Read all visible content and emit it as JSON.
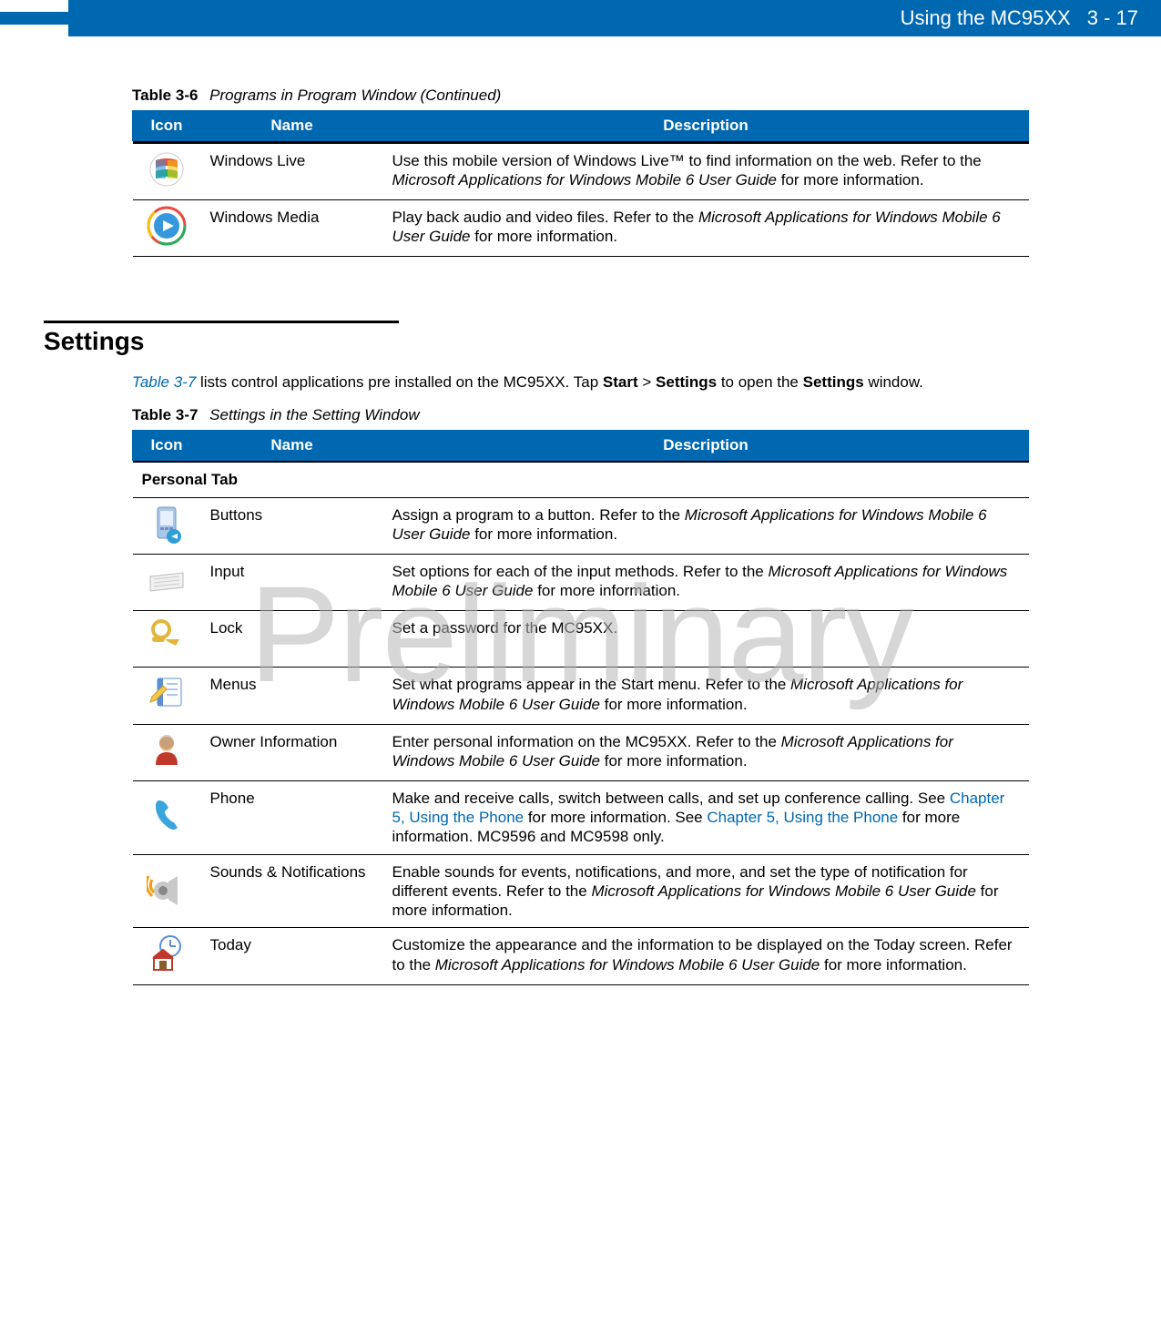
{
  "header": {
    "title": "Using the MC95XX",
    "pagenum": "3 - 17",
    "bar_color": "#0067b1",
    "text_color": "#ffffff"
  },
  "watermark": "Preliminary",
  "table36": {
    "number": "Table 3-6",
    "title": "Programs in Program Window (Continued)",
    "columns": [
      "Icon",
      "Name",
      "Description"
    ],
    "rows": [
      {
        "icon": "windows-live-icon",
        "name": "Windows Live",
        "desc_parts": [
          {
            "t": "Use this mobile version of Windows Live™ to find information on the web. Refer to the "
          },
          {
            "t": "Microsoft Applications for Windows Mobile 6 User Guide",
            "italic": true
          },
          {
            "t": " for more information."
          }
        ]
      },
      {
        "icon": "windows-media-icon",
        "name": "Windows Media",
        "desc_parts": [
          {
            "t": "Play back audio and video files. Refer to the "
          },
          {
            "t": "Microsoft Applications for Windows Mobile 6 User Guide",
            "italic": true
          },
          {
            "t": " for more information."
          }
        ]
      }
    ]
  },
  "settings_section": {
    "heading": "Settings",
    "intro_parts": [
      {
        "t": "Table 3-7",
        "link": true,
        "italic": true
      },
      {
        "t": " lists control applications pre installed on the MC95XX. Tap "
      },
      {
        "t": "Start",
        "bold": true
      },
      {
        "t": " > "
      },
      {
        "t": "Settings",
        "bold": true
      },
      {
        "t": " to open the "
      },
      {
        "t": "Settings",
        "bold": true
      },
      {
        "t": " window."
      }
    ]
  },
  "table37": {
    "number": "Table 3-7",
    "title": "Settings in the Setting Window",
    "columns": [
      "Icon",
      "Name",
      "Description"
    ],
    "section_label": "Personal Tab",
    "rows": [
      {
        "icon": "buttons-icon",
        "name": "Buttons",
        "desc_parts": [
          {
            "t": "Assign a program to a button. Refer to the "
          },
          {
            "t": "Microsoft Applications for Windows Mobile 6 User Guide",
            "italic": true
          },
          {
            "t": " for more information."
          }
        ]
      },
      {
        "icon": "input-icon",
        "name": "Input",
        "desc_parts": [
          {
            "t": "Set options for each of the input methods. Refer to the "
          },
          {
            "t": "Microsoft Applications for Windows Mobile 6 User Guide",
            "italic": true
          },
          {
            "t": " for more information."
          }
        ]
      },
      {
        "icon": "lock-icon",
        "name": "Lock",
        "desc_parts": [
          {
            "t": "Set a password for the MC95XX."
          }
        ]
      },
      {
        "icon": "menus-icon",
        "name": "Menus",
        "desc_parts": [
          {
            "t": "Set what programs appear in the Start menu. Refer to the "
          },
          {
            "t": "Microsoft Applications for Windows Mobile 6 User Guide",
            "italic": true
          },
          {
            "t": " for more information."
          }
        ]
      },
      {
        "icon": "owner-info-icon",
        "name": "Owner Information",
        "desc_parts": [
          {
            "t": "Enter personal information on the MC95XX. Refer to the "
          },
          {
            "t": "Microsoft Applications for Windows Mobile 6 User Guide",
            "italic": true
          },
          {
            "t": " for more information."
          }
        ]
      },
      {
        "icon": "phone-icon",
        "name": "Phone",
        "desc_parts": [
          {
            "t": "Make and receive calls, switch between calls, and set up conference calling. See "
          },
          {
            "t": "Chapter 5, Using the Phone",
            "link": true
          },
          {
            "t": " for more information. See "
          },
          {
            "t": "Chapter 5, Using the Phone",
            "link": true
          },
          {
            "t": " for more information. MC9596 and MC9598 only."
          }
        ]
      },
      {
        "icon": "sounds-icon",
        "name": "Sounds & Notifications",
        "desc_parts": [
          {
            "t": "Enable sounds for events, notifications, and more, and set the type of notification for different events. Refer to the "
          },
          {
            "t": "Microsoft Applications for Windows Mobile 6 User Guide",
            "italic": true
          },
          {
            "t": " for more information."
          }
        ]
      },
      {
        "icon": "today-icon",
        "name": "Today",
        "desc_parts": [
          {
            "t": "Customize the appearance and the information to be displayed on the Today screen. Refer to the "
          },
          {
            "t": "Microsoft Applications for Windows Mobile 6 User Guide",
            "italic": true
          },
          {
            "t": " for more information."
          }
        ]
      }
    ]
  },
  "icons_svg": {
    "windows-live-icon": "<svg viewBox='0 0 44 44'><circle cx='22' cy='22' r='18' fill='#fff' stroke='#ccc'/><path d='M10 12 Q22 8 34 12 L34 20 Q22 16 10 20 Z' fill='#e74c3c'/><path d='M10 24 Q22 20 34 24 L34 32 Q22 28 10 32 Z' fill='#27ae60'/><rect x='10' y='12' width='11' height='20' fill='#3498db' opacity='.6'/><rect x='23' y='12' width='11' height='20' fill='#f1c40f' opacity='.6'/></svg>",
    "windows-media-icon": "<svg viewBox='0 0 44 44'><circle cx='22' cy='22' r='20' fill='none' stroke='#e74c3c' stroke-width='3'/><circle cx='22' cy='22' r='20' fill='none' stroke='#27ae60' stroke-width='3' stroke-dasharray='40 90'/><circle cx='22' cy='22' r='20' fill='none' stroke='#f1c40f' stroke-width='3' stroke-dasharray='30 100' stroke-dashoffset='-50'/><circle cx='22' cy='22' r='14' fill='#3498db'/><path d='M18 16 L30 22 L18 28 Z' fill='#fff'/></svg>",
    "buttons-icon": "<svg viewBox='0 0 44 44'><rect x='12' y='4' width='20' height='34' rx='3' fill='#a9c7e8' stroke='#6b94bf'/><rect x='15' y='8' width='14' height='16' fill='#e6f0fa'/><rect x='15' y='26' width='4' height='3' fill='#6b94bf'/><rect x='20' y='26' width='4' height='3' fill='#6b94bf'/><rect x='25' y='26' width='4' height='3' fill='#6b94bf'/><circle cx='30' cy='36' r='8' fill='#2e9fd6'/><path d='M27 36 L34 33 L34 39 Z' fill='#fff'/></svg>",
    "input-icon": "<svg viewBox='0 0 44 44'><path d='M4 18 L40 14 L40 30 L4 34 Z' fill='#f0f0f0' stroke='#bbb'/><line x1='8' y1='21' x2='36' y2='18' stroke='#ccc'/><line x1='8' y1='25' x2='36' y2='22' stroke='#ccc'/><line x1='8' y1='29' x2='36' y2='26' stroke='#ccc'/></svg>",
    "lock-icon": "<svg viewBox='0 0 44 44'><circle cx='16' cy='14' r='9' fill='none' stroke='#e3b53a' stroke-width='4'/><rect x='6' y='22' width='14' height='6' rx='3' fill='#e3b53a'/><path d='M20 25 L36 25 L32 32 L24 28 Z' fill='#e3b53a'/></svg>",
    "menus-icon": "<svg viewBox='0 0 44 44'><rect x='12' y='6' width='26' height='30' rx='2' fill='#fff' stroke='#5a8fd6'/><rect x='12' y='6' width='6' height='30' fill='#5a8fd6'/><line x1='22' y1='12' x2='34' y2='12' stroke='#5a8fd6'/><line x1='22' y1='18' x2='34' y2='18' stroke='#5a8fd6'/><line x1='22' y1='24' x2='34' y2='24' stroke='#5a8fd6'/><path d='M6 26 L18 14 L22 18 L10 30 L4 32 Z' fill='#f3c84b' stroke='#c79a2a'/></svg>",
    "owner-info-icon": "<svg viewBox='0 0 44 44'><circle cx='22' cy='15' r='8' fill='#f4c39a'/><path d='M10 38 Q10 24 22 24 Q34 24 34 38 Z' fill='#c0392b'/><circle cx='22' cy='13' r='8' fill='#6b4c2e' opacity='.3'/></svg>",
    "phone-icon": "<svg viewBox='0 0 44 44'><path d='M14 6 Q10 6 10 12 Q10 26 24 36 Q30 40 34 36 L30 30 Q28 30 24 26 Q20 22 20 18 L24 14 Q20 6 14 6 Z' fill='#3aa5dc'/></svg>",
    "sounds-icon": "<svg viewBox='0 0 44 44'><ellipse cx='18' cy='24' rx='10' ry='10' fill='#c9c9c9'/><ellipse cx='18' cy='24' rx='5' ry='5' fill='#888'/><path d='M24 14 L34 8 L34 40 L24 34 Z' fill='#c9c9c9'/><path d='M6 12 Q2 20 8 26' fill='none' stroke='#f39c12' stroke-width='3'/><path d='M2 8 Q-4 20 6 30' fill='none' stroke='#f39c12' stroke-width='3'/></svg>",
    "today-icon": "<svg viewBox='0 0 44 44'><circle cx='26' cy='14' r='11' fill='#fff' stroke='#5a8fd6' stroke-width='2'/><line x1='26' y1='14' x2='26' y2='7' stroke='#5a8fd6' stroke-width='2'/><line x1='26' y1='14' x2='32' y2='14' stroke='#5a8fd6' stroke-width='2'/><path d='M8 40 L8 26 L18 18 L28 26 L28 40 Z' fill='#fff' stroke='#c0392b' stroke-width='2'/><path d='M6 28 L18 18 L30 28' fill='#c0392b'/><rect x='14' y='30' width='8' height='10' fill='#8b5a2b'/></svg>"
  }
}
